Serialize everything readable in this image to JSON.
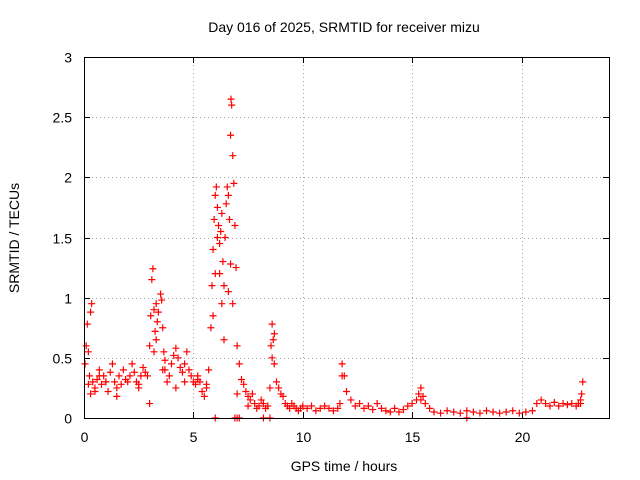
{
  "chart_data": {
    "type": "scatter",
    "title": "Day 016 of 2025, SRMTID for receiver mizu",
    "xlabel": "GPS time / hours",
    "ylabel": "SRMTID / TECUs",
    "xlim": [
      0,
      24
    ],
    "ylim": [
      0,
      3
    ],
    "x_ticks": [
      0,
      5,
      10,
      15,
      20
    ],
    "x_tick_labels": [
      "0",
      "5",
      "10",
      "15",
      "20"
    ],
    "y_ticks": [
      0,
      0.5,
      1,
      1.5,
      2,
      2.5,
      3
    ],
    "y_tick_labels": [
      "0",
      "0.5",
      "1",
      "1.5",
      "2",
      "2.5",
      "3"
    ],
    "grid": true,
    "marker": "plus",
    "series": [
      {
        "name": "SRMTID",
        "color": "#ff0000",
        "x": [
          0.05,
          0.1,
          0.15,
          0.2,
          0.25,
          0.3,
          0.35,
          0.4,
          0.5,
          0.6,
          0.7,
          0.8,
          0.9,
          1.0,
          1.1,
          1.2,
          1.3,
          1.4,
          1.5,
          1.6,
          1.7,
          1.8,
          1.9,
          2.0,
          2.1,
          2.2,
          2.3,
          2.4,
          2.5,
          2.6,
          2.7,
          2.8,
          2.9,
          3.0,
          3.05,
          3.1,
          3.15,
          3.2,
          3.25,
          3.3,
          3.35,
          3.4,
          3.5,
          3.55,
          3.6,
          3.65,
          3.7,
          3.8,
          3.9,
          4.0,
          4.1,
          4.2,
          4.3,
          4.4,
          4.5,
          4.6,
          4.7,
          4.8,
          4.9,
          5.0,
          5.1,
          5.2,
          5.3,
          5.4,
          5.5,
          5.6,
          5.7,
          5.8,
          5.85,
          5.9,
          5.95,
          6.0,
          6.05,
          6.1,
          6.15,
          6.2,
          6.25,
          6.3,
          6.35,
          6.4,
          6.45,
          6.5,
          6.55,
          6.6,
          6.65,
          6.7,
          6.72,
          6.75,
          6.8,
          6.85,
          6.9,
          6.95,
          7.0,
          7.1,
          7.2,
          7.3,
          7.4,
          7.5,
          7.6,
          7.7,
          7.8,
          7.9,
          8.0,
          8.1,
          8.2,
          8.3,
          8.4,
          8.5,
          8.55,
          8.6,
          8.65,
          8.7,
          8.8,
          8.9,
          9.0,
          9.1,
          9.2,
          9.3,
          9.4,
          9.5,
          9.6,
          9.7,
          9.8,
          9.9,
          10.0,
          10.2,
          10.4,
          10.6,
          10.8,
          11.0,
          11.2,
          11.4,
          11.6,
          11.7,
          11.8,
          11.9,
          12.0,
          12.2,
          12.4,
          12.6,
          12.8,
          13.0,
          13.2,
          13.4,
          13.6,
          13.8,
          14.0,
          14.2,
          14.4,
          14.6,
          14.8,
          15.0,
          15.2,
          15.3,
          15.4,
          15.5,
          15.6,
          15.8,
          16.0,
          16.3,
          16.6,
          16.9,
          17.2,
          17.5,
          17.8,
          18.1,
          18.4,
          18.7,
          19.0,
          19.3,
          19.6,
          19.9,
          20.2,
          20.5,
          20.7,
          20.9,
          21.1,
          21.3,
          21.5,
          21.7,
          21.9,
          22.1,
          22.3,
          22.5,
          22.6,
          22.7,
          22.75,
          22.8,
          0.2,
          0.3,
          0.5,
          0.7,
          1.0,
          1.5,
          2.5,
          3.0,
          3.2,
          3.3,
          3.6,
          3.7,
          4.2,
          4.6,
          5.2,
          5.6,
          5.9,
          6.0,
          6.1,
          6.2,
          6.3,
          6.4,
          6.6,
          6.7,
          6.8,
          7.0,
          7.5,
          8.6,
          8.7,
          11.8,
          15.4,
          22.7,
          6.0,
          6.9,
          7.0,
          7.1,
          8.2,
          8.5,
          17.5
        ],
        "y": [
          0.45,
          0.6,
          0.78,
          0.55,
          0.35,
          0.88,
          0.95,
          0.3,
          0.25,
          0.32,
          0.4,
          0.28,
          0.35,
          0.3,
          0.22,
          0.38,
          0.45,
          0.3,
          0.25,
          0.35,
          0.28,
          0.4,
          0.32,
          0.3,
          0.35,
          0.45,
          0.38,
          0.3,
          0.25,
          0.35,
          0.42,
          0.38,
          0.35,
          0.6,
          0.85,
          1.15,
          1.24,
          0.9,
          0.72,
          0.65,
          0.8,
          0.88,
          1.03,
          0.98,
          0.75,
          0.55,
          0.4,
          0.3,
          0.35,
          0.45,
          0.52,
          0.58,
          0.5,
          0.42,
          0.38,
          0.45,
          0.55,
          0.4,
          0.35,
          0.3,
          0.28,
          0.35,
          0.3,
          0.22,
          0.18,
          0.25,
          0.4,
          0.75,
          1.1,
          1.4,
          1.65,
          1.85,
          1.92,
          1.75,
          1.6,
          1.45,
          1.55,
          1.7,
          1.3,
          1.1,
          1.5,
          1.78,
          1.92,
          1.85,
          1.65,
          2.35,
          2.65,
          2.6,
          2.18,
          1.95,
          1.6,
          1.25,
          0.6,
          0.45,
          0.32,
          0.28,
          0.22,
          0.18,
          0.15,
          0.2,
          0.12,
          0.08,
          0.1,
          0.15,
          0.12,
          0.08,
          0.1,
          0.25,
          0.6,
          0.78,
          0.65,
          0.45,
          0.3,
          0.25,
          0.2,
          0.18,
          0.12,
          0.1,
          0.08,
          0.12,
          0.1,
          0.08,
          0.06,
          0.08,
          0.1,
          0.08,
          0.1,
          0.06,
          0.08,
          0.1,
          0.08,
          0.06,
          0.08,
          0.12,
          0.45,
          0.35,
          0.22,
          0.15,
          0.1,
          0.12,
          0.08,
          0.1,
          0.07,
          0.12,
          0.08,
          0.06,
          0.05,
          0.08,
          0.05,
          0.07,
          0.1,
          0.12,
          0.15,
          0.2,
          0.25,
          0.18,
          0.12,
          0.08,
          0.05,
          0.04,
          0.06,
          0.05,
          0.04,
          0.06,
          0.05,
          0.04,
          0.06,
          0.05,
          0.04,
          0.05,
          0.06,
          0.04,
          0.05,
          0.06,
          0.12,
          0.15,
          0.12,
          0.1,
          0.13,
          0.1,
          0.12,
          0.11,
          0.12,
          0.1,
          0.12,
          0.15,
          0.2,
          0.3,
          0.28,
          0.2,
          0.22,
          0.35,
          0.3,
          0.18,
          0.28,
          0.12,
          0.55,
          0.95,
          0.4,
          0.48,
          0.25,
          0.3,
          0.32,
          0.28,
          0.85,
          1.2,
          1.5,
          1.2,
          0.95,
          0.65,
          1.05,
          1.28,
          0.95,
          0.2,
          0.1,
          0.5,
          0.7,
          0.35,
          0.15,
          0.12,
          0.0,
          0.0,
          0.0,
          0.0,
          0.0,
          0.0,
          0.0
        ]
      }
    ]
  }
}
